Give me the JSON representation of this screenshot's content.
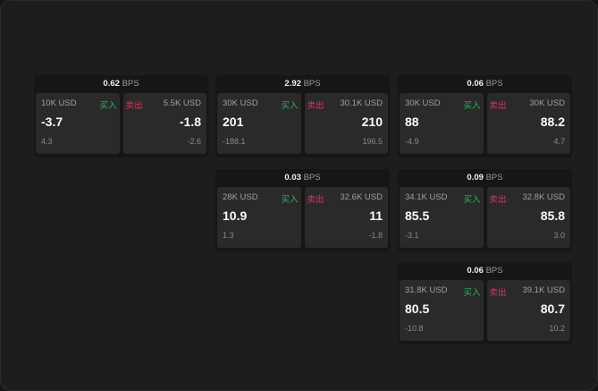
{
  "bps_unit": "BPS",
  "buy_label": "买入",
  "sell_label": "卖出",
  "colors": {
    "buy": "#2fb35a",
    "sell": "#e0335e"
  },
  "cards": [
    {
      "bps": "0.62",
      "buy": {
        "size": "10K USD",
        "price": "-3.7",
        "change": "4.3"
      },
      "sell": {
        "size": "5.5K USD",
        "price": "-1.8",
        "change": "-2.6"
      }
    },
    {
      "bps": "2.92",
      "buy": {
        "size": "30K USD",
        "price": "201",
        "change": "-188.1"
      },
      "sell": {
        "size": "30.1K USD",
        "price": "210",
        "change": "196.5"
      }
    },
    {
      "bps": "0.06",
      "buy": {
        "size": "30K USD",
        "price": "88",
        "change": "-4.9"
      },
      "sell": {
        "size": "30K USD",
        "price": "88.2",
        "change": "4.7"
      }
    },
    {
      "bps": "0.03",
      "buy": {
        "size": "28K USD",
        "price": "10.9",
        "change": "1.3"
      },
      "sell": {
        "size": "32.6K USD",
        "price": "11",
        "change": "-1.8"
      }
    },
    {
      "bps": "0.09",
      "buy": {
        "size": "34.1K USD",
        "price": "85.5",
        "change": "-3.1"
      },
      "sell": {
        "size": "32.8K USD",
        "price": "85.8",
        "change": "3.0"
      }
    },
    {
      "bps": "0.06",
      "buy": {
        "size": "31.8K USD",
        "price": "80.5",
        "change": "-10.8"
      },
      "sell": {
        "size": "39.1K USD",
        "price": "80.7",
        "change": "10.2"
      }
    }
  ]
}
